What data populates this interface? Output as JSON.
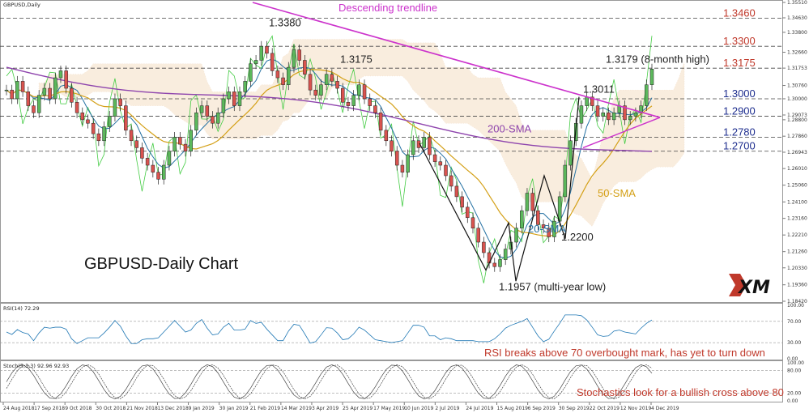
{
  "chart_data": {
    "type": "candlestick",
    "symbol_label": "GBPUSD,Daily",
    "title": "GBPUSD-Daily Chart",
    "main_panel": {
      "y_ticks": [
        "1.35510",
        "1.34630",
        "1.33800",
        "1.32660",
        "1.31753",
        "1.30760",
        "1.30000",
        "1.29073",
        "1.28800",
        "1.27860",
        "1.26943",
        "1.26010",
        "1.25060",
        "1.24100",
        "1.23160",
        "1.22210",
        "1.21260",
        "1.20330",
        "1.19360",
        "1.18420"
      ],
      "ylim": [
        1.1842,
        1.3551
      ],
      "price_levels": [
        {
          "label": "1.3460",
          "value": 1.346,
          "color": "#c0392b"
        },
        {
          "label": "1.3300",
          "value": 1.33,
          "color": "#c0392b"
        },
        {
          "label": "1.3175",
          "value": 1.3175,
          "color": "#c0392b"
        },
        {
          "label": "1.3000",
          "value": 1.3,
          "color": "#1f2f8f"
        },
        {
          "label": "1.2900",
          "value": 1.29,
          "color": "#1f2f8f"
        },
        {
          "label": "1.2780",
          "value": 1.278,
          "color": "#1f2f8f"
        },
        {
          "label": "1.2700",
          "value": 1.27,
          "color": "#1f2f8f"
        }
      ],
      "annotations": [
        {
          "text": "Descending trendline",
          "color": "#cc33cc"
        },
        {
          "text": "1.3380",
          "color": "#222222"
        },
        {
          "text": "1.3175",
          "color": "#222222"
        },
        {
          "text": "1.3179 (8-month high)",
          "color": "#222222"
        },
        {
          "text": "1.3011",
          "color": "#222222"
        },
        {
          "text": "200-SMA",
          "color": "#8e44ad"
        },
        {
          "text": "50-SMA",
          "color": "#d4a017"
        },
        {
          "text": "20-SMA",
          "color": "#2471a3"
        },
        {
          "text": "1.2200",
          "color": "#222222"
        },
        {
          "text": "1.1957 (multi-year low)",
          "color": "#222222"
        }
      ],
      "close_series": [
        1.305,
        1.3,
        1.31,
        1.304,
        1.296,
        1.292,
        1.302,
        1.306,
        1.3,
        1.312,
        1.316,
        1.306,
        1.298,
        1.292,
        1.288,
        1.286,
        1.28,
        1.276,
        1.284,
        1.29,
        1.3,
        1.296,
        1.282,
        1.276,
        1.272,
        1.266,
        1.262,
        1.258,
        1.254,
        1.262,
        1.27,
        1.278,
        1.274,
        1.27,
        1.282,
        1.292,
        1.296,
        1.29,
        1.286,
        1.292,
        1.3,
        1.304,
        1.296,
        1.304,
        1.31,
        1.32,
        1.322,
        1.33,
        1.326,
        1.316,
        1.312,
        1.308,
        1.318,
        1.328,
        1.322,
        1.314,
        1.305,
        1.302,
        1.308,
        1.314,
        1.31,
        1.306,
        1.298,
        1.296,
        1.302,
        1.308,
        1.3,
        1.296,
        1.292,
        1.282,
        1.276,
        1.27,
        1.262,
        1.258,
        1.268,
        1.276,
        1.272,
        1.278,
        1.268,
        1.264,
        1.262,
        1.256,
        1.25,
        1.244,
        1.238,
        1.232,
        1.226,
        1.218,
        1.212,
        1.206,
        1.204,
        1.208,
        1.214,
        1.218,
        1.226,
        1.236,
        1.246,
        1.236,
        1.228,
        1.226,
        1.221,
        1.23,
        1.244,
        1.262,
        1.276,
        1.286,
        1.296,
        1.301,
        1.296,
        1.29,
        1.292,
        1.288,
        1.292,
        1.296,
        1.288,
        1.29,
        1.292,
        1.296,
        1.308,
        1.317
      ],
      "series": [
        {
          "name": "200-SMA",
          "color": "#8e44ad"
        },
        {
          "name": "50-SMA",
          "color": "#d4a017"
        },
        {
          "name": "20-SMA",
          "color": "#2471a3"
        },
        {
          "name": "Descending trendline",
          "color": "#cc33cc"
        }
      ],
      "x_ticks": [
        "24 Aug 2018",
        "17 Sep 2018",
        "9 Oct 2018",
        "30 Oct 2018",
        "21 Nov 2018",
        "13 Dec 2018",
        "9 Jan 2019",
        "30 Jan 2019",
        "21 Feb 2019",
        "14 Mar 2019",
        "3 Apr 2019",
        "25 Apr 2019",
        "17 May 2019",
        "10 Jun 2019",
        "2 Jul 2019",
        "24 Jul 2019",
        "15 Aug 2019",
        "6 Sep 2019",
        "30 Sep 2019",
        "22 Oct 2019",
        "12 Nov 2019",
        "4 Dec 2019"
      ]
    },
    "rsi_panel": {
      "label": "RSI(14) 72.29",
      "y_ticks": [
        "100.00",
        "70.00",
        "30.00",
        "0.00"
      ],
      "levels": [
        70,
        30
      ],
      "annotation": "RSI breaks above 70 overbought mark, has yet to turn down"
    },
    "stoch_panel": {
      "label": "Stoch(5,3,3) 92.96 92.93",
      "y_ticks": [
        "100.00",
        "80.00",
        "20.00",
        "0.00"
      ],
      "levels": [
        80,
        20
      ],
      "annotation": "Stochastics look for a bullish cross above 80"
    },
    "logo": "XM"
  }
}
